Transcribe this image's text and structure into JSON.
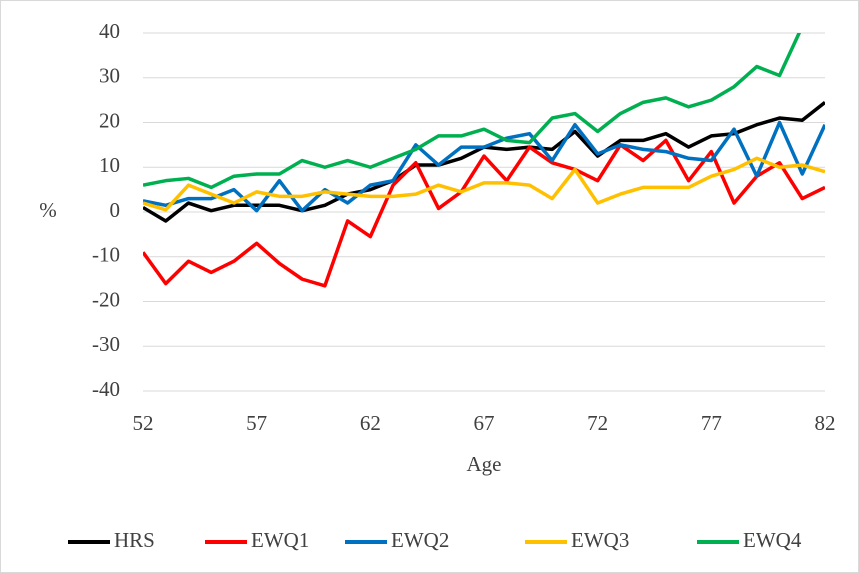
{
  "chart_data": {
    "type": "line",
    "x_label": "Age",
    "y_label": "%",
    "x": [
      52,
      53,
      54,
      55,
      56,
      57,
      58,
      59,
      60,
      61,
      62,
      63,
      64,
      65,
      66,
      67,
      68,
      69,
      70,
      71,
      72,
      73,
      74,
      75,
      76,
      77,
      78,
      79,
      80,
      81,
      82
    ],
    "xlim": [
      52,
      82
    ],
    "xticks": [
      52,
      57,
      62,
      67,
      72,
      77,
      82
    ],
    "ylim": [
      -40,
      40
    ],
    "yticks": [
      -40,
      -30,
      -20,
      -10,
      0,
      10,
      20,
      30,
      40
    ],
    "grid": true,
    "legend": "bottom",
    "series": [
      {
        "name": "HRS",
        "color": "#000000",
        "values": [
          1,
          -2,
          2,
          0.3,
          1.5,
          1.5,
          1.5,
          0.3,
          1.5,
          4,
          5,
          7,
          10.5,
          10.5,
          12,
          14.5,
          14,
          14.5,
          14,
          18,
          12.5,
          16,
          16,
          17.5,
          14.5,
          17,
          17.5,
          19.5,
          21,
          20.5,
          24.5
        ]
      },
      {
        "name": "EWQ1",
        "color": "#ff0000",
        "values": [
          -9,
          -16,
          -11,
          -13.5,
          -11,
          -7,
          -11.5,
          -15,
          -16.5,
          -2,
          -5.5,
          6,
          11,
          0.8,
          4.5,
          12.5,
          7,
          14.5,
          11,
          9.5,
          7,
          15,
          11.5,
          16,
          7,
          13.5,
          2,
          8,
          11,
          3,
          5.5
        ]
      },
      {
        "name": "EWQ2",
        "color": "#0070c0",
        "values": [
          2.5,
          1.5,
          3,
          3,
          5,
          0.3,
          7,
          0.3,
          5,
          2,
          6,
          7,
          15,
          10.5,
          14.5,
          14.5,
          16.5,
          17.5,
          11.5,
          19.5,
          13,
          15,
          14,
          13.5,
          12,
          11.5,
          18.5,
          8,
          20,
          8.5,
          19.5
        ]
      },
      {
        "name": "EWQ3",
        "color": "#ffc000",
        "values": [
          2,
          0.5,
          6,
          4,
          2,
          4.5,
          3.5,
          3.5,
          4.5,
          4,
          3.5,
          3.5,
          4,
          6,
          4.5,
          6.5,
          6.5,
          6,
          3,
          9.5,
          2,
          4,
          5.5,
          5.5,
          5.5,
          8,
          9.5,
          12,
          10,
          10.5,
          9
        ]
      },
      {
        "name": "EWQ4",
        "color": "#00b050",
        "values": [
          6,
          7,
          7.5,
          5.5,
          8,
          8.5,
          8.5,
          11.5,
          10,
          11.5,
          10,
          12,
          14,
          17,
          17,
          18.5,
          16,
          15.5,
          21,
          22,
          18,
          22,
          24.5,
          25.5,
          23.5,
          25,
          28,
          32.5,
          30.5,
          41.5,
          45
        ]
      }
    ]
  }
}
